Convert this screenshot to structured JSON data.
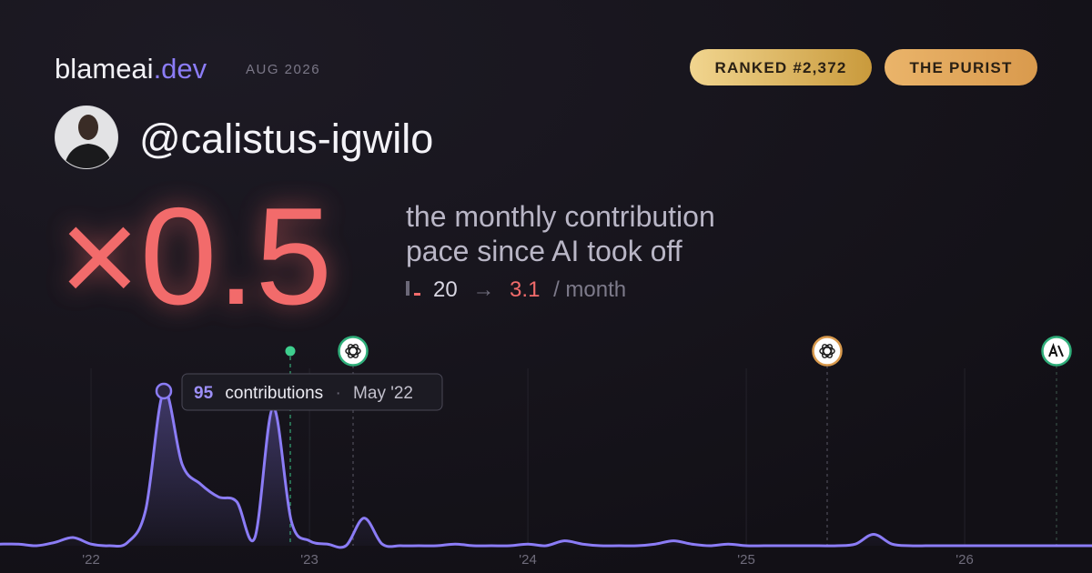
{
  "header": {
    "brand": "blameai",
    "brand_tld": ".dev",
    "date": "AUG 2026",
    "badges": [
      "RANKED #2,372",
      "THE PURIST"
    ]
  },
  "profile": {
    "handle": "@calistus-igwilo"
  },
  "headline": {
    "multiplier": "×0.5",
    "caption": [
      "the monthly contribution",
      "pace since AI took off"
    ],
    "before": "20",
    "arrow": "→",
    "after": "3.1",
    "unit": "/ month"
  },
  "chart_data": {
    "type": "line",
    "x": [
      2021.583,
      2021.667,
      2021.75,
      2021.833,
      2021.917,
      2022,
      2022.083,
      2022.167,
      2022.25,
      2022.333,
      2022.417,
      2022.5,
      2022.583,
      2022.667,
      2022.75,
      2022.833,
      2022.917,
      2023,
      2023.083,
      2023.167,
      2023.25,
      2023.333,
      2023.417,
      2023.5,
      2023.583,
      2023.667,
      2023.75,
      2023.833,
      2023.917,
      2024,
      2024.083,
      2024.167,
      2024.25,
      2024.333,
      2024.417,
      2024.5,
      2024.583,
      2024.667,
      2024.75,
      2024.833,
      2024.917,
      2025,
      2025.083,
      2025.167,
      2025.25,
      2025.333,
      2025.417,
      2025.5,
      2025.583,
      2025.667,
      2025.75,
      2025.833,
      2025.917,
      2026,
      2026.083,
      2026.167,
      2026.25,
      2026.333,
      2026.417,
      2026.5,
      2026.583
    ],
    "series": [
      {
        "name": "contributions",
        "color": "#8b7cf6",
        "values": [
          1,
          1,
          0,
          2,
          5,
          1,
          0,
          2,
          22,
          95,
          50,
          38,
          30,
          27,
          5,
          85,
          15,
          3,
          1,
          0,
          17,
          1,
          0,
          0,
          0,
          1,
          0,
          0,
          0,
          1,
          0,
          3,
          1,
          0,
          0,
          0,
          1,
          3,
          1,
          0,
          1,
          0,
          0,
          0,
          0,
          0,
          0,
          1,
          7,
          1,
          0,
          0,
          0,
          0,
          0,
          0,
          0,
          0,
          0,
          0,
          0
        ]
      }
    ],
    "tooltip_date": "May '22",
    "xlim": [
      2021.583,
      2026.583
    ],
    "ylim": [
      0,
      100
    ],
    "xticks": [
      {
        "value": 2022,
        "label": "'22"
      },
      {
        "value": 2023,
        "label": "'23"
      },
      {
        "value": 2024,
        "label": "'24"
      },
      {
        "value": 2025,
        "label": "'25"
      },
      {
        "value": 2026,
        "label": "'26"
      }
    ],
    "grid": true
  }
}
